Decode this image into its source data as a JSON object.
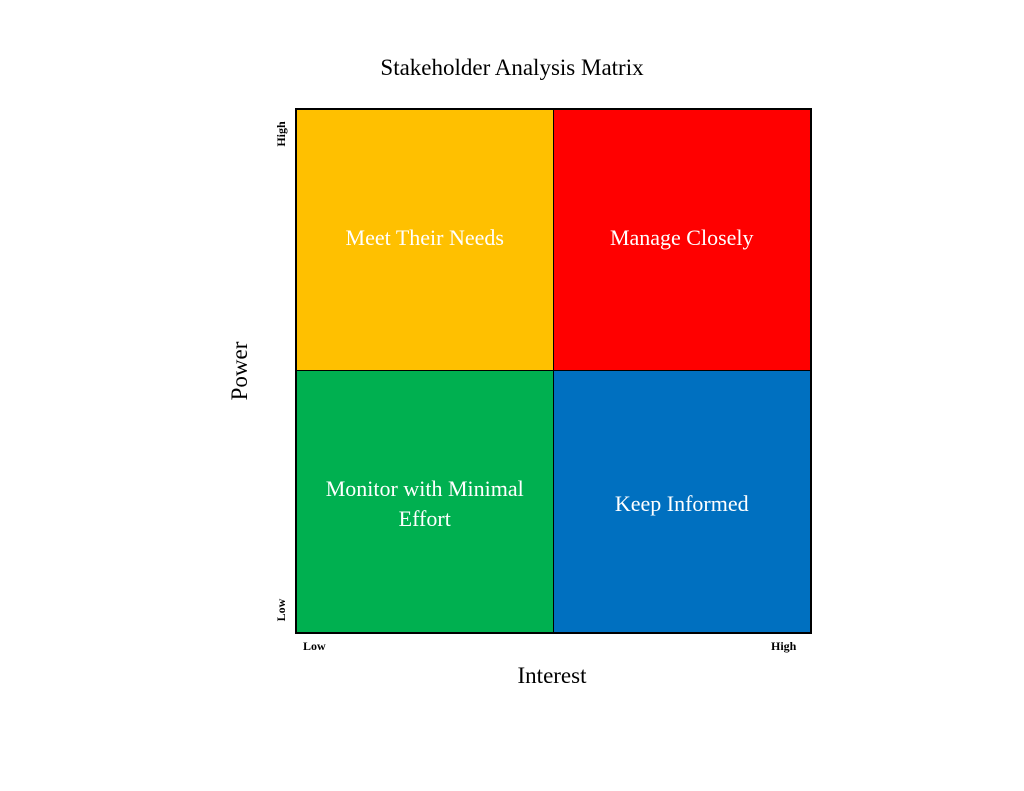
{
  "title": "Stakeholder Analysis Matrix",
  "axes": {
    "y_label": "Power",
    "x_label": "Interest",
    "y_high": "High",
    "y_low": "Low",
    "x_low": "Low",
    "x_high": "High"
  },
  "quadrants": {
    "top_left": {
      "label": "Meet Their Needs",
      "color": "#FFC000"
    },
    "top_right": {
      "label": "Manage Closely",
      "color": "#FF0000"
    },
    "bottom_left": {
      "label": "Monitor with Minimal\nEffort",
      "color": "#00B050"
    },
    "bottom_right": {
      "label": "Keep Informed",
      "color": "#0070C0"
    }
  }
}
